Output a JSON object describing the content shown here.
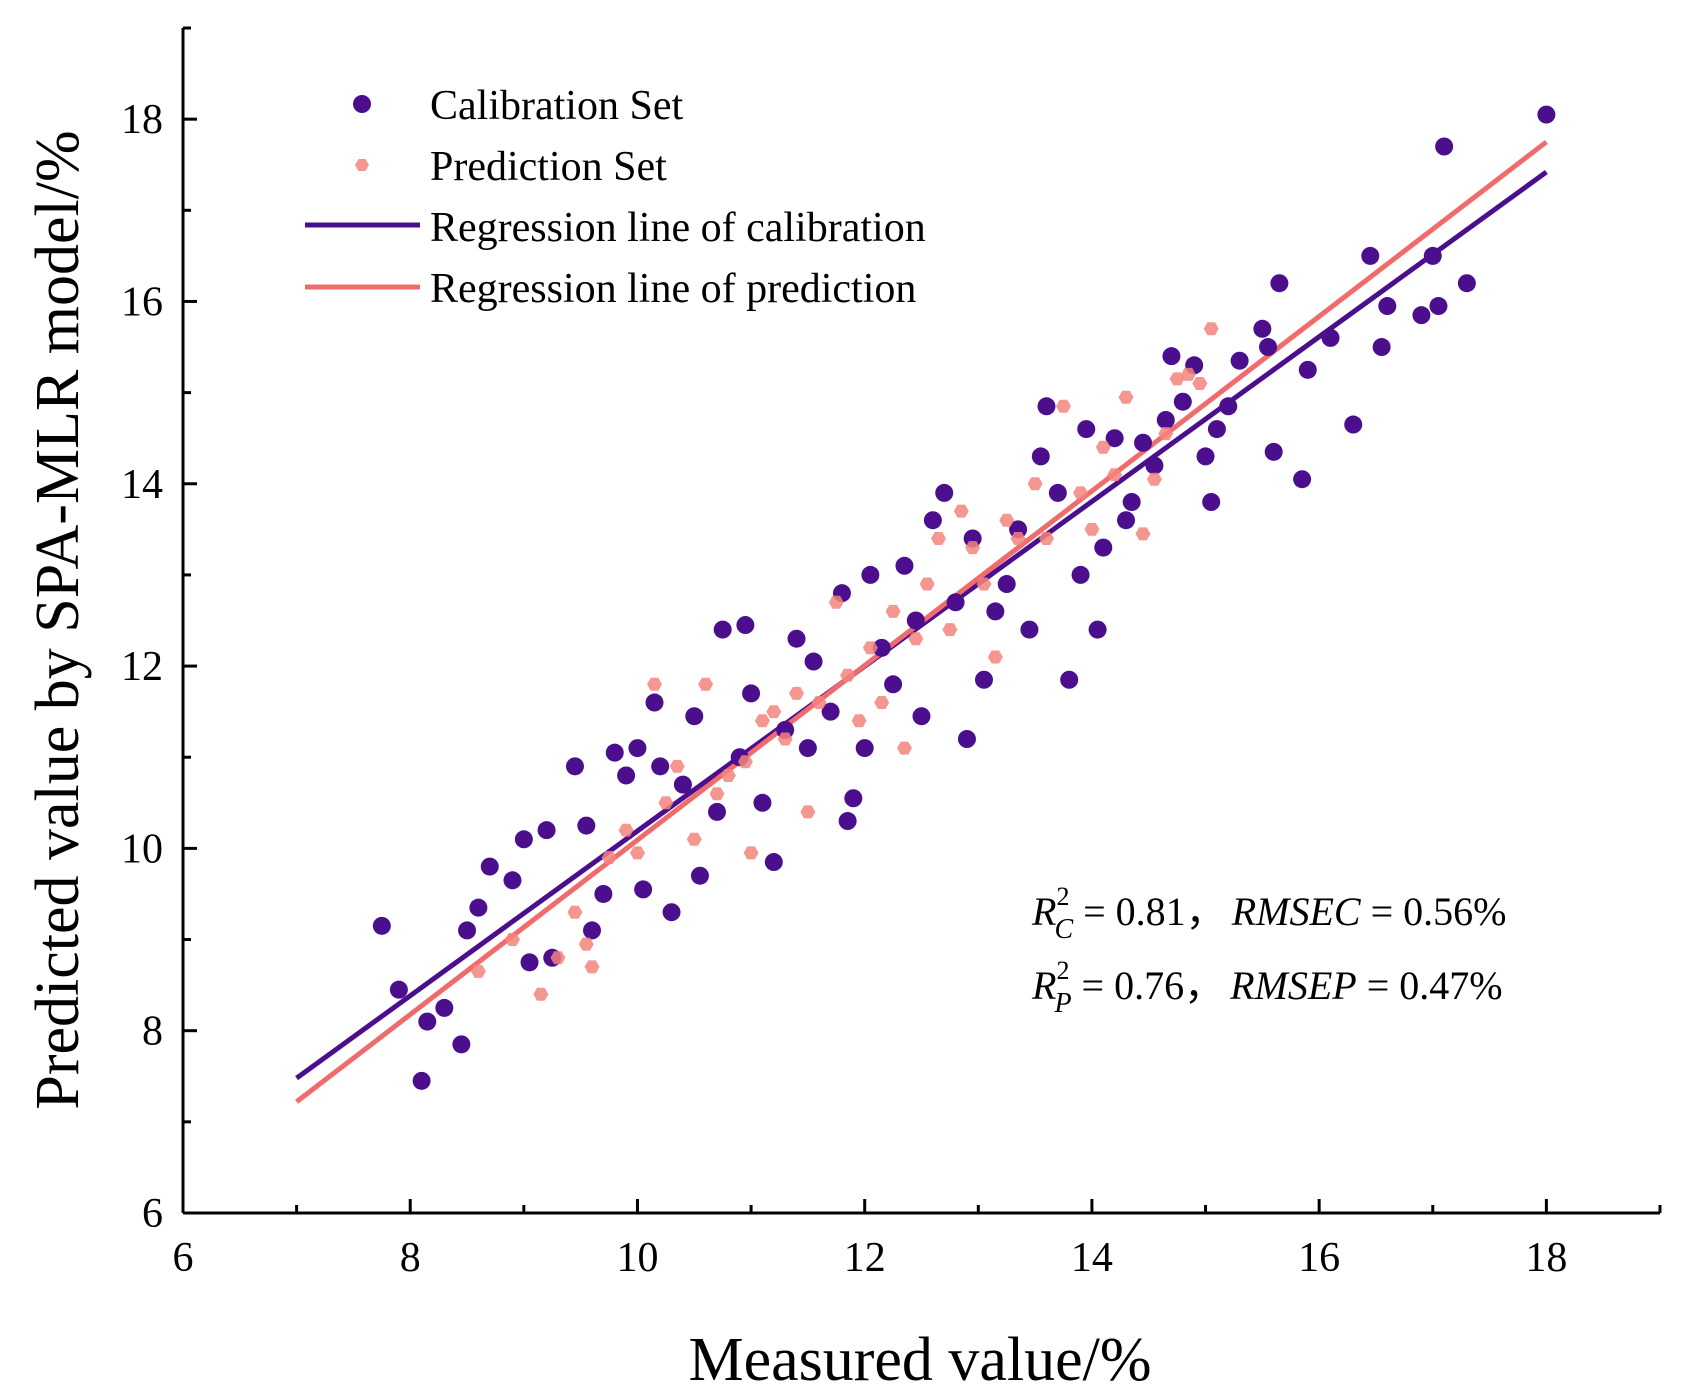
{
  "chart_data": {
    "type": "scatter",
    "title": "",
    "xlabel": "Measured value/%",
    "ylabel": "Predicted value by SPA-MLR model/%",
    "xlim": [
      6,
      19
    ],
    "ylim": [
      6,
      19
    ],
    "xticks": [
      6,
      8,
      10,
      12,
      14,
      16,
      18
    ],
    "yticks": [
      6,
      8,
      10,
      12,
      14,
      16,
      18
    ],
    "grid": false,
    "legend_position": "top-left",
    "colors": {
      "calibration": "#4b0f8e",
      "prediction": "#f4847c",
      "cal_line": "#4b0f8e",
      "pred_line": "#f06b6b"
    },
    "series": [
      {
        "name": "Calibration Set",
        "kind": "scatter",
        "points": [
          [
            7.75,
            9.15
          ],
          [
            7.9,
            8.45
          ],
          [
            8.1,
            7.45
          ],
          [
            8.15,
            8.1
          ],
          [
            8.3,
            8.25
          ],
          [
            8.45,
            7.85
          ],
          [
            8.5,
            9.1
          ],
          [
            8.6,
            9.35
          ],
          [
            8.7,
            9.8
          ],
          [
            8.9,
            9.65
          ],
          [
            9.0,
            10.1
          ],
          [
            9.05,
            8.75
          ],
          [
            9.2,
            10.2
          ],
          [
            9.25,
            8.8
          ],
          [
            9.45,
            10.9
          ],
          [
            9.55,
            10.25
          ],
          [
            9.6,
            9.1
          ],
          [
            9.7,
            9.5
          ],
          [
            9.8,
            11.05
          ],
          [
            9.9,
            10.8
          ],
          [
            10.0,
            11.1
          ],
          [
            10.05,
            9.55
          ],
          [
            10.15,
            11.6
          ],
          [
            10.2,
            10.9
          ],
          [
            10.3,
            9.3
          ],
          [
            10.4,
            10.7
          ],
          [
            10.5,
            11.45
          ],
          [
            10.55,
            9.7
          ],
          [
            10.7,
            10.4
          ],
          [
            10.75,
            12.4
          ],
          [
            10.9,
            11.0
          ],
          [
            10.95,
            12.45
          ],
          [
            11.0,
            11.7
          ],
          [
            11.1,
            10.5
          ],
          [
            11.2,
            9.85
          ],
          [
            11.3,
            11.3
          ],
          [
            11.4,
            12.3
          ],
          [
            11.5,
            11.1
          ],
          [
            11.55,
            12.05
          ],
          [
            11.7,
            11.5
          ],
          [
            11.8,
            12.8
          ],
          [
            11.85,
            10.3
          ],
          [
            11.9,
            10.55
          ],
          [
            12.0,
            11.1
          ],
          [
            12.05,
            13.0
          ],
          [
            12.15,
            12.2
          ],
          [
            12.25,
            11.8
          ],
          [
            12.35,
            13.1
          ],
          [
            12.45,
            12.5
          ],
          [
            12.5,
            11.45
          ],
          [
            12.6,
            13.6
          ],
          [
            12.7,
            13.9
          ],
          [
            12.8,
            12.7
          ],
          [
            12.9,
            11.2
          ],
          [
            12.95,
            13.4
          ],
          [
            13.05,
            11.85
          ],
          [
            13.15,
            12.6
          ],
          [
            13.25,
            12.9
          ],
          [
            13.35,
            13.5
          ],
          [
            13.45,
            12.4
          ],
          [
            13.55,
            14.3
          ],
          [
            13.6,
            14.85
          ],
          [
            13.7,
            13.9
          ],
          [
            13.8,
            11.85
          ],
          [
            13.9,
            13.0
          ],
          [
            13.95,
            14.6
          ],
          [
            14.05,
            12.4
          ],
          [
            14.1,
            13.3
          ],
          [
            14.2,
            14.5
          ],
          [
            14.3,
            13.6
          ],
          [
            14.35,
            13.8
          ],
          [
            14.45,
            14.45
          ],
          [
            14.55,
            14.2
          ],
          [
            14.65,
            14.7
          ],
          [
            14.7,
            15.4
          ],
          [
            14.8,
            14.9
          ],
          [
            14.9,
            15.3
          ],
          [
            15.0,
            14.3
          ],
          [
            15.05,
            13.8
          ],
          [
            15.1,
            14.6
          ],
          [
            15.2,
            14.85
          ],
          [
            15.3,
            15.35
          ],
          [
            15.5,
            15.7
          ],
          [
            15.55,
            15.5
          ],
          [
            15.6,
            14.35
          ],
          [
            15.65,
            16.2
          ],
          [
            15.85,
            14.05
          ],
          [
            15.9,
            15.25
          ],
          [
            16.1,
            15.6
          ],
          [
            16.3,
            14.65
          ],
          [
            16.45,
            16.5
          ],
          [
            16.55,
            15.5
          ],
          [
            16.6,
            15.95
          ],
          [
            16.9,
            15.85
          ],
          [
            17.0,
            16.5
          ],
          [
            17.05,
            15.95
          ],
          [
            17.1,
            17.7
          ],
          [
            17.3,
            16.2
          ],
          [
            18.0,
            18.05
          ]
        ]
      },
      {
        "name": "Prediction Set",
        "kind": "scatter",
        "points": [
          [
            8.6,
            8.65
          ],
          [
            8.9,
            9.0
          ],
          [
            9.15,
            8.4
          ],
          [
            9.3,
            8.8
          ],
          [
            9.45,
            9.3
          ],
          [
            9.55,
            8.95
          ],
          [
            9.6,
            8.7
          ],
          [
            9.75,
            9.9
          ],
          [
            9.9,
            10.2
          ],
          [
            10.0,
            9.95
          ],
          [
            10.15,
            11.8
          ],
          [
            10.25,
            10.5
          ],
          [
            10.35,
            10.9
          ],
          [
            10.5,
            10.1
          ],
          [
            10.6,
            11.8
          ],
          [
            10.7,
            10.6
          ],
          [
            10.8,
            10.8
          ],
          [
            10.95,
            10.95
          ],
          [
            11.0,
            9.95
          ],
          [
            11.1,
            11.4
          ],
          [
            11.2,
            11.5
          ],
          [
            11.3,
            11.2
          ],
          [
            11.4,
            11.7
          ],
          [
            11.5,
            10.4
          ],
          [
            11.6,
            11.6
          ],
          [
            11.75,
            12.7
          ],
          [
            11.85,
            11.9
          ],
          [
            11.95,
            11.4
          ],
          [
            12.05,
            12.2
          ],
          [
            12.15,
            11.6
          ],
          [
            12.25,
            12.6
          ],
          [
            12.35,
            11.1
          ],
          [
            12.45,
            12.3
          ],
          [
            12.55,
            12.9
          ],
          [
            12.65,
            13.4
          ],
          [
            12.75,
            12.4
          ],
          [
            12.85,
            13.7
          ],
          [
            12.95,
            13.3
          ],
          [
            13.05,
            12.9
          ],
          [
            13.15,
            12.1
          ],
          [
            13.25,
            13.6
          ],
          [
            13.35,
            13.4
          ],
          [
            13.5,
            14.0
          ],
          [
            13.6,
            13.4
          ],
          [
            13.75,
            14.85
          ],
          [
            13.9,
            13.9
          ],
          [
            14.0,
            13.5
          ],
          [
            14.1,
            14.4
          ],
          [
            14.2,
            14.1
          ],
          [
            14.3,
            14.95
          ],
          [
            14.45,
            13.45
          ],
          [
            14.55,
            14.05
          ],
          [
            14.65,
            14.55
          ],
          [
            14.75,
            15.15
          ],
          [
            14.85,
            15.2
          ],
          [
            14.95,
            15.1
          ],
          [
            15.05,
            15.7
          ]
        ]
      },
      {
        "name": "Regression line of calibration",
        "kind": "line",
        "x": [
          7.0,
          18.0
        ],
        "y": [
          7.48,
          17.42
        ]
      },
      {
        "name": "Regression line of prediction",
        "kind": "line",
        "x": [
          7.0,
          18.0
        ],
        "y": [
          7.22,
          17.75
        ]
      }
    ],
    "annotations": [
      {
        "symbol": "R",
        "sup": "2",
        "sub": "C",
        "eq": "= 0.81，",
        "metric": "RMSEC",
        "value": "= 0.56%"
      },
      {
        "symbol": "R",
        "sup": "2",
        "sub": "P",
        "eq": "= 0.76，",
        "metric": "RMSEP",
        "value": "= 0.47%"
      }
    ]
  }
}
